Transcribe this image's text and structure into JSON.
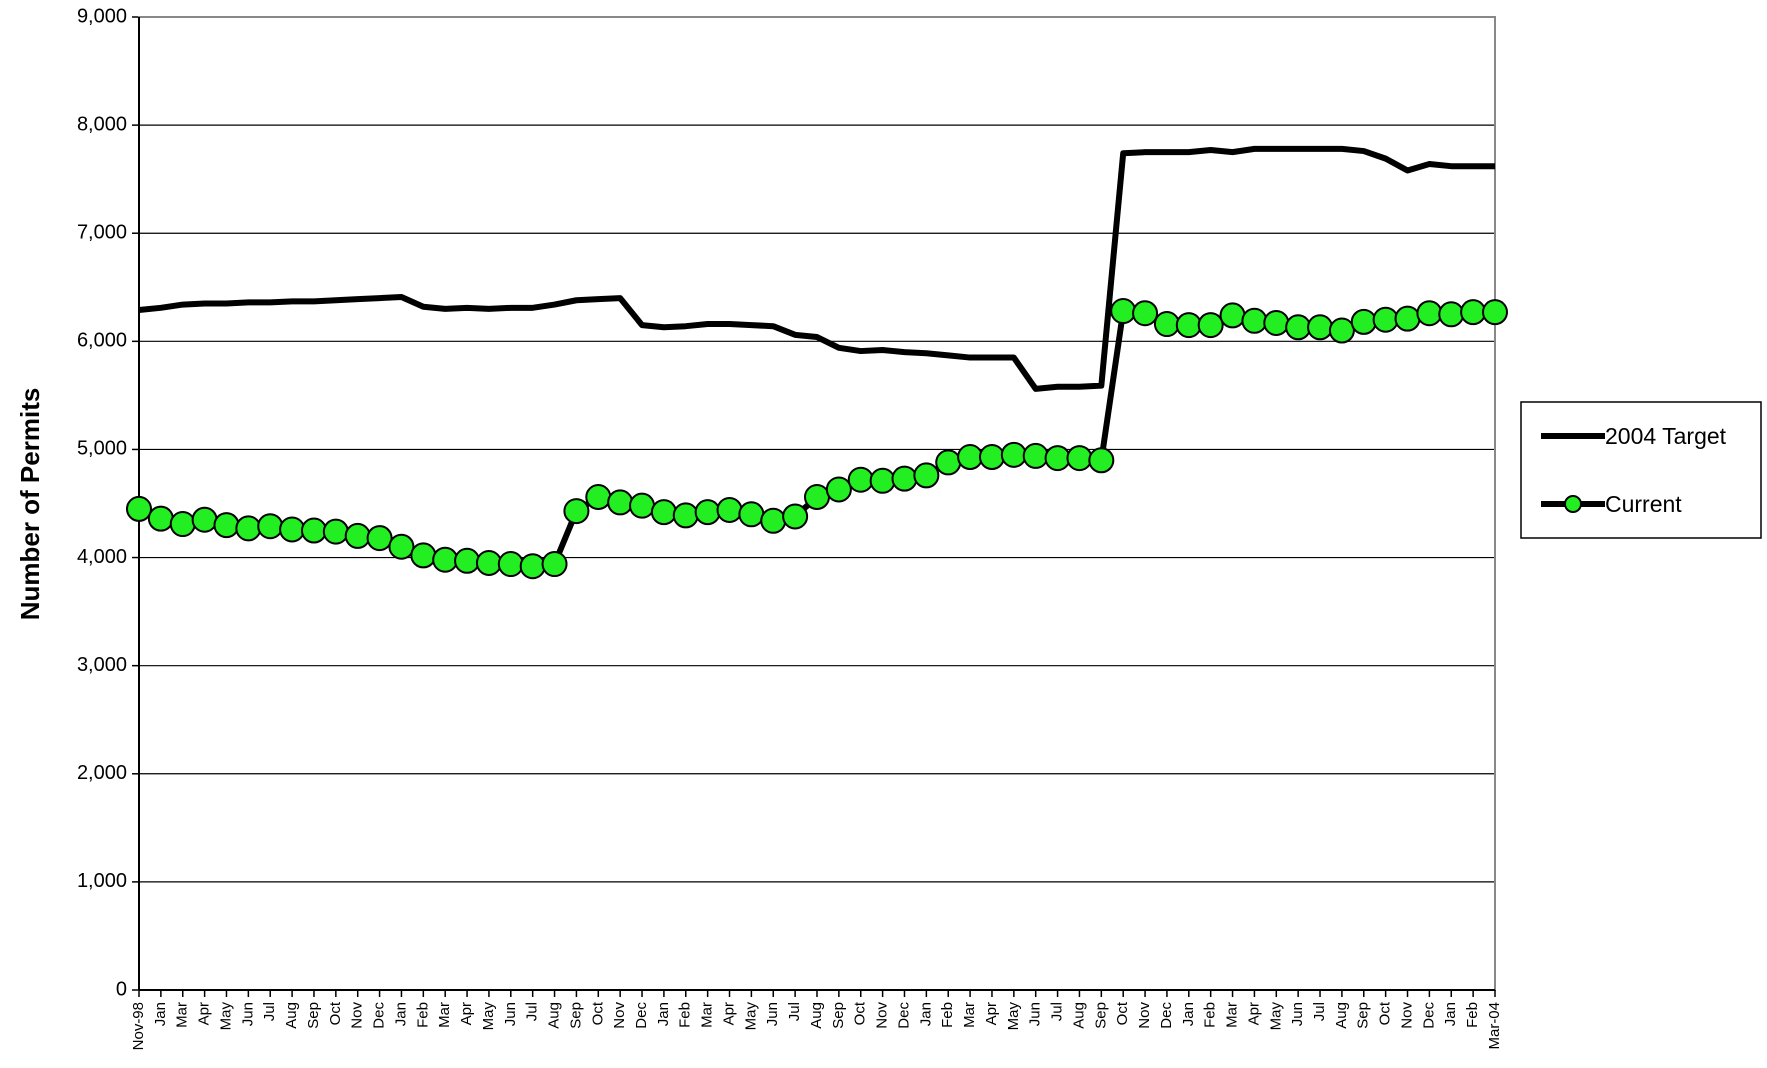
{
  "chart_data": {
    "type": "line",
    "y_label": "Number of Permits",
    "categories": [
      "Nov-98",
      "Jan",
      "Mar",
      "Apr",
      "May",
      "Jun",
      "Jul",
      "Aug",
      "Sep",
      "Oct",
      "Nov",
      "Dec",
      "Jan",
      "Feb",
      "Mar",
      "Apr",
      "May",
      "Jun",
      "Jul",
      "Aug",
      "Sep",
      "Oct",
      "Nov",
      "Dec",
      "Jan",
      "Feb",
      "Mar",
      "Apr",
      "May",
      "Jun",
      "Jul",
      "Aug",
      "Sep",
      "Oct",
      "Nov",
      "Dec",
      "Jan",
      "Feb",
      "Mar",
      "Apr",
      "May",
      "Jun",
      "Jul",
      "Aug",
      "Sep",
      "Oct",
      "Nov",
      "Dec",
      "Jan",
      "Feb",
      "Mar",
      "Apr",
      "May",
      "Jun",
      "Jul",
      "Aug",
      "Sep",
      "Oct",
      "Nov",
      "Dec",
      "Jan",
      "Feb",
      "Mar-04"
    ],
    "series": [
      {
        "name": "2004 Target",
        "color": "#000000",
        "marker": false,
        "values": [
          6290,
          6310,
          6340,
          6350,
          6350,
          6360,
          6360,
          6370,
          6370,
          6380,
          6390,
          6400,
          6410,
          6320,
          6300,
          6310,
          6300,
          6310,
          6310,
          6340,
          6380,
          6390,
          6400,
          6150,
          6130,
          6140,
          6160,
          6160,
          6150,
          6140,
          6060,
          6040,
          5940,
          5910,
          5920,
          5900,
          5890,
          5870,
          5850,
          5850,
          5850,
          5560,
          5580,
          5580,
          5590,
          7740,
          7750,
          7750,
          7750,
          7770,
          7750,
          7780,
          7780,
          7780,
          7780,
          7780,
          7760,
          7690,
          7580,
          7640,
          7620,
          7620,
          7620
        ]
      },
      {
        "name": "Current",
        "color": "#000000",
        "marker_color": "#22ee22",
        "marker": true,
        "values": [
          4450,
          4360,
          4310,
          4350,
          4300,
          4270,
          4290,
          4260,
          4250,
          4240,
          4200,
          4180,
          4100,
          4020,
          3980,
          3970,
          3950,
          3940,
          3920,
          3940,
          4430,
          4560,
          4510,
          4480,
          4420,
          4390,
          4420,
          4440,
          4400,
          4340,
          4380,
          4560,
          4630,
          4720,
          4710,
          4730,
          4760,
          4880,
          4930,
          4930,
          4950,
          4940,
          4920,
          4920,
          4900,
          6280,
          6260,
          6160,
          6150,
          6150,
          6240,
          6190,
          6170,
          6130,
          6130,
          6100,
          6180,
          6200,
          6210,
          6260,
          6250,
          6270,
          6270
        ]
      }
    ],
    "ylim": [
      0,
      9000
    ],
    "yticks": [
      0,
      {
        "value": 1000,
        "label": "1,000"
      },
      {
        "value": 2000,
        "label": "2,000"
      },
      {
        "value": 3000,
        "label": "3,000"
      },
      {
        "value": 4000,
        "label": "4,000"
      },
      {
        "value": 5000,
        "label": "5,000"
      },
      {
        "value": 6000,
        "label": "6,000"
      },
      {
        "value": 7000,
        "label": "7,000"
      },
      {
        "value": 8000,
        "label": "8,000"
      },
      {
        "value": 9000,
        "label": "9,000"
      }
    ],
    "grid": true,
    "legend": "right"
  }
}
